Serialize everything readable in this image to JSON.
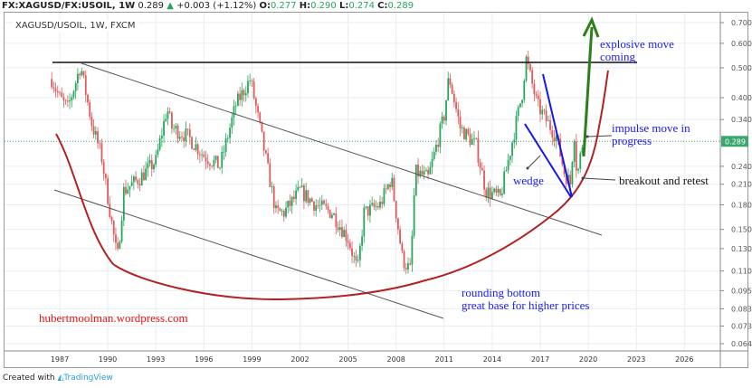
{
  "header": {
    "symbol": "FX:XAGUSD/FX:USOIL, 1W",
    "last": "0.289",
    "change": "+0.003 (+1.12%)",
    "o_label": "O:",
    "o": "0.277",
    "h_label": "H:",
    "h": "0.290",
    "l_label": "L:",
    "l": "0.274",
    "c_label": "C:",
    "c": "0.289"
  },
  "legend": "XAGUSD/USOIL, 1W, FXCM",
  "footer": {
    "created_with": "Created with",
    "brand": "TradingView"
  },
  "colors": {
    "up": "#26a65b",
    "down": "#e05a5a",
    "curve": "#b22222",
    "wedge": "#1515ee",
    "arrow": "#2e7d1a",
    "text_blue": "#1a1aff",
    "text_red": "#ee1111",
    "last_price": "#3aa76d"
  },
  "chart_data": {
    "type": "candlestick",
    "title": "XAGUSD/USOIL, 1W, FXCM",
    "y_scale": "log",
    "ylim": [
      0.06,
      0.75
    ],
    "y_ticks": [
      "0.700",
      "0.600",
      "0.500",
      "0.400",
      "0.340",
      "0.289",
      "0.240",
      "0.210",
      "0.180",
      "0.150",
      "0.130",
      "0.110",
      "0.095",
      "0.083",
      "0.073",
      "0.064"
    ],
    "x_ticks": [
      "1987",
      "1990",
      "1993",
      "1996",
      "1999",
      "2002",
      "2005",
      "2008",
      "2011",
      "2014",
      "2017",
      "2020",
      "2023",
      "2026"
    ],
    "last_price": 0.289,
    "approx_path": [
      [
        1986.5,
        0.46
      ],
      [
        1987,
        0.4
      ],
      [
        1987.5,
        0.37
      ],
      [
        1988,
        0.45
      ],
      [
        1988.3,
        0.51
      ],
      [
        1989,
        0.33
      ],
      [
        1989.6,
        0.26
      ],
      [
        1990.6,
        0.12
      ],
      [
        1991,
        0.2
      ],
      [
        1992,
        0.22
      ],
      [
        1993,
        0.25
      ],
      [
        1993.7,
        0.37
      ],
      [
        1994,
        0.32
      ],
      [
        1995,
        0.3
      ],
      [
        1996,
        0.26
      ],
      [
        1997,
        0.24
      ],
      [
        1998,
        0.38
      ],
      [
        1998.9,
        0.46
      ],
      [
        1999.5,
        0.32
      ],
      [
        2000.5,
        0.17
      ],
      [
        2001,
        0.17
      ],
      [
        2002,
        0.2
      ],
      [
        2003,
        0.18
      ],
      [
        2004,
        0.17
      ],
      [
        2005,
        0.14
      ],
      [
        2005.6,
        0.11
      ],
      [
        2006,
        0.17
      ],
      [
        2007,
        0.18
      ],
      [
        2007.7,
        0.22
      ],
      [
        2008.4,
        0.12
      ],
      [
        2008.9,
        0.11
      ],
      [
        2009.2,
        0.23
      ],
      [
        2010,
        0.22
      ],
      [
        2011,
        0.35
      ],
      [
        2011.3,
        0.47
      ],
      [
        2012,
        0.32
      ],
      [
        2013,
        0.28
      ],
      [
        2013.6,
        0.2
      ],
      [
        2014.5,
        0.19
      ],
      [
        2015,
        0.25
      ],
      [
        2015.9,
        0.42
      ],
      [
        2016.1,
        0.54
      ],
      [
        2016.8,
        0.38
      ],
      [
        2017.5,
        0.33
      ],
      [
        2018,
        0.3
      ],
      [
        2018.5,
        0.23
      ],
      [
        2018.9,
        0.21
      ],
      [
        2019.1,
        0.32
      ],
      [
        2019.3,
        0.22
      ],
      [
        2019.6,
        0.28
      ],
      [
        2019.7,
        0.289
      ]
    ],
    "annotations": [
      "explosive move coming",
      "impulse move in progress",
      "wedge",
      "breakout and retest",
      "rounding bottom",
      "great base for higher prices",
      "hubertmoolman.wordpress.com"
    ]
  }
}
